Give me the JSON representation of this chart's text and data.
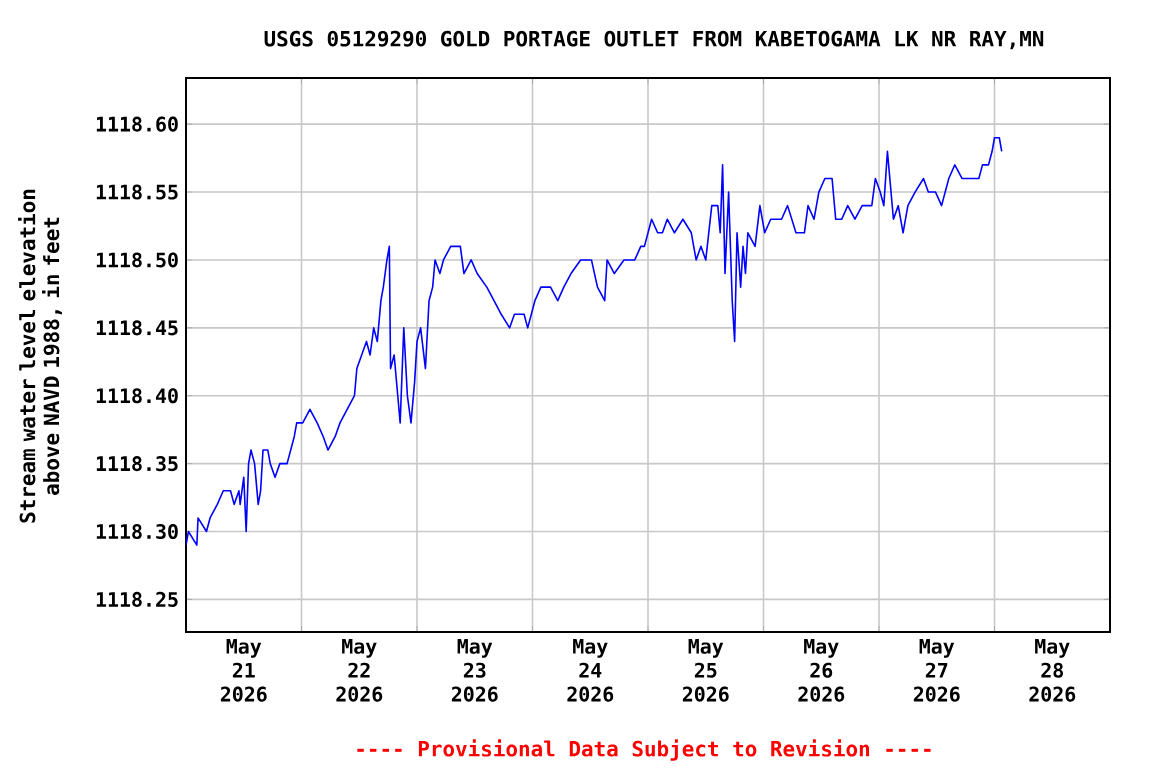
{
  "chart_data": {
    "type": "line",
    "title": "USGS 05129290 GOLD PORTAGE OUTLET FROM KABETOGAMA LK NR RAY,MN",
    "ylabel": "Stream water level elevation above NAVD 1988, in feet",
    "annotations": [
      "---- Provisional Data Subject to Revision ----"
    ],
    "xlim": [
      "2026-05-21T00:00",
      "2026-05-29T00:00"
    ],
    "xticks": [
      {
        "value": "2026-05-21T00:00",
        "label": null
      },
      {
        "value": "2026-05-21T12:00",
        "label": "May 21 2026"
      },
      {
        "value": "2026-05-22T00:00",
        "label": null
      },
      {
        "value": "2026-05-22T12:00",
        "label": "May 22 2026"
      },
      {
        "value": "2026-05-23T00:00",
        "label": null
      },
      {
        "value": "2026-05-23T12:00",
        "label": "May 23 2026"
      },
      {
        "value": "2026-05-24T00:00",
        "label": null
      },
      {
        "value": "2026-05-24T12:00",
        "label": "May 24 2026"
      },
      {
        "value": "2026-05-25T00:00",
        "label": null
      },
      {
        "value": "2026-05-25T12:00",
        "label": "May 25 2026"
      },
      {
        "value": "2026-05-26T00:00",
        "label": null
      },
      {
        "value": "2026-05-26T12:00",
        "label": "May 26 2026"
      },
      {
        "value": "2026-05-27T00:00",
        "label": null
      },
      {
        "value": "2026-05-27T12:00",
        "label": "May 27 2026"
      },
      {
        "value": "2026-05-28T00:00",
        "label": null
      },
      {
        "value": "2026-05-28T12:00",
        "label": "May 28 2026"
      },
      {
        "value": "2026-05-29T00:00",
        "label": null
      }
    ],
    "ylim": [
      1118.226,
      1118.634
    ],
    "yticks": [
      1118.25,
      {
        "value": 1118.3,
        "label": "1118.30"
      },
      1118.35,
      {
        "value": 1118.4,
        "label": "1118.40"
      },
      1118.45,
      {
        "value": 1118.5,
        "label": "1118.50"
      },
      1118.55,
      {
        "value": 1118.6,
        "label": "1118.60"
      }
    ],
    "grid": true,
    "marker": "none",
    "line_style": "solid",
    "x": [
      "2026-05-21T00:00",
      "2026-05-21T00:30",
      "2026-05-21T02:15",
      "2026-05-21T02:30",
      "2026-05-21T04:15",
      "2026-05-21T05:00",
      "2026-05-21T06:30",
      "2026-05-21T07:45",
      "2026-05-21T09:15",
      "2026-05-21T10:00",
      "2026-05-21T11:00",
      "2026-05-21T11:15",
      "2026-05-21T12:00",
      "2026-05-21T12:30",
      "2026-05-21T13:00",
      "2026-05-21T13:30",
      "2026-05-21T14:15",
      "2026-05-21T15:00",
      "2026-05-21T15:30",
      "2026-05-21T16:00",
      "2026-05-21T17:00",
      "2026-05-21T17:30",
      "2026-05-21T18:30",
      "2026-05-21T19:30",
      "2026-05-21T21:00",
      "2026-05-21T21:45",
      "2026-05-21T22:30",
      "2026-05-21T23:00",
      "2026-05-22T00:15",
      "2026-05-22T01:45",
      "2026-05-22T03:15",
      "2026-05-22T04:30",
      "2026-05-22T05:30",
      "2026-05-22T07:00",
      "2026-05-22T08:00",
      "2026-05-22T09:30",
      "2026-05-22T11:00",
      "2026-05-22T11:30",
      "2026-05-22T12:30",
      "2026-05-22T13:30",
      "2026-05-22T14:15",
      "2026-05-22T15:00",
      "2026-05-22T15:45",
      "2026-05-22T16:30",
      "2026-05-22T17:00",
      "2026-05-22T17:45",
      "2026-05-22T18:15",
      "2026-05-22T18:30",
      "2026-05-22T19:15",
      "2026-05-22T20:00",
      "2026-05-22T20:30",
      "2026-05-22T21:15",
      "2026-05-22T22:00",
      "2026-05-22T22:45",
      "2026-05-22T23:30",
      "2026-05-23T00:00",
      "2026-05-23T00:45",
      "2026-05-23T01:45",
      "2026-05-23T02:30",
      "2026-05-23T03:15",
      "2026-05-23T03:45",
      "2026-05-23T04:45",
      "2026-05-23T05:30",
      "2026-05-23T07:00",
      "2026-05-23T09:00",
      "2026-05-23T09:45",
      "2026-05-23T11:15",
      "2026-05-23T12:30",
      "2026-05-23T14:30",
      "2026-05-23T16:00",
      "2026-05-23T17:30",
      "2026-05-23T19:15",
      "2026-05-23T20:15",
      "2026-05-23T22:15",
      "2026-05-23T23:00",
      "2026-05-24T00:30",
      "2026-05-24T01:45",
      "2026-05-24T03:45",
      "2026-05-24T05:15",
      "2026-05-24T06:30",
      "2026-05-24T08:00",
      "2026-05-24T10:00",
      "2026-05-24T12:15",
      "2026-05-24T13:30",
      "2026-05-24T15:00",
      "2026-05-24T15:30",
      "2026-05-24T17:00",
      "2026-05-24T19:00",
      "2026-05-24T21:15",
      "2026-05-24T22:30",
      "2026-05-24T23:15",
      "2026-05-25T00:00",
      "2026-05-25T00:45",
      "2026-05-25T02:00",
      "2026-05-25T03:00",
      "2026-05-25T04:00",
      "2026-05-25T05:30",
      "2026-05-25T07:15",
      "2026-05-25T09:00",
      "2026-05-25T10:00",
      "2026-05-25T11:00",
      "2026-05-25T12:00",
      "2026-05-25T13:15",
      "2026-05-25T14:30",
      "2026-05-25T15:00",
      "2026-05-25T15:30",
      "2026-05-25T16:00",
      "2026-05-25T16:45",
      "2026-05-25T17:30",
      "2026-05-25T18:00",
      "2026-05-25T18:30",
      "2026-05-25T19:15",
      "2026-05-25T19:45",
      "2026-05-25T20:15",
      "2026-05-25T20:45",
      "2026-05-25T22:15",
      "2026-05-25T23:15",
      "2026-05-26T00:15",
      "2026-05-26T01:30",
      "2026-05-26T03:45",
      "2026-05-26T05:00",
      "2026-05-26T06:45",
      "2026-05-26T08:30",
      "2026-05-26T09:15",
      "2026-05-26T10:30",
      "2026-05-26T11:30",
      "2026-05-26T12:45",
      "2026-05-26T14:15",
      "2026-05-26T15:00",
      "2026-05-26T16:15",
      "2026-05-26T17:30",
      "2026-05-26T19:00",
      "2026-05-26T20:30",
      "2026-05-26T22:30",
      "2026-05-26T23:15",
      "2026-05-27T00:15",
      "2026-05-27T01:00",
      "2026-05-27T01:45",
      "2026-05-27T02:15",
      "2026-05-27T03:00",
      "2026-05-27T04:00",
      "2026-05-27T05:00",
      "2026-05-27T06:00",
      "2026-05-27T07:30",
      "2026-05-27T09:15",
      "2026-05-27T10:15",
      "2026-05-27T11:45",
      "2026-05-27T13:00",
      "2026-05-27T14:30",
      "2026-05-27T15:45",
      "2026-05-27T17:15",
      "2026-05-27T19:15",
      "2026-05-27T20:45",
      "2026-05-27T21:30",
      "2026-05-27T22:45",
      "2026-05-27T23:30",
      "2026-05-28T00:00",
      "2026-05-28T01:00",
      "2026-05-28T01:30"
    ],
    "series": [
      {
        "color": "#0000ff",
        "values": [
          1118.29,
          1118.3,
          1118.29,
          1118.31,
          1118.3,
          1118.31,
          1118.32,
          1118.33,
          1118.33,
          1118.32,
          1118.33,
          1118.32,
          1118.34,
          1118.3,
          1118.35,
          1118.36,
          1118.35,
          1118.32,
          1118.33,
          1118.36,
          1118.36,
          1118.35,
          1118.34,
          1118.35,
          1118.35,
          1118.36,
          1118.37,
          1118.38,
          1118.38,
          1118.39,
          1118.38,
          1118.37,
          1118.36,
          1118.37,
          1118.38,
          1118.39,
          1118.4,
          1118.42,
          1118.43,
          1118.44,
          1118.43,
          1118.45,
          1118.44,
          1118.47,
          1118.48,
          1118.5,
          1118.51,
          1118.42,
          1118.43,
          1118.4,
          1118.38,
          1118.45,
          1118.4,
          1118.38,
          1118.41,
          1118.44,
          1118.45,
          1118.42,
          1118.47,
          1118.48,
          1118.5,
          1118.49,
          1118.5,
          1118.51,
          1118.51,
          1118.49,
          1118.5,
          1118.49,
          1118.48,
          1118.47,
          1118.46,
          1118.45,
          1118.46,
          1118.46,
          1118.45,
          1118.47,
          1118.48,
          1118.48,
          1118.47,
          1118.48,
          1118.49,
          1118.5,
          1118.5,
          1118.48,
          1118.47,
          1118.5,
          1118.49,
          1118.5,
          1118.5,
          1118.51,
          1118.51,
          1118.52,
          1118.53,
          1118.52,
          1118.52,
          1118.53,
          1118.52,
          1118.53,
          1118.52,
          1118.5,
          1118.51,
          1118.5,
          1118.54,
          1118.54,
          1118.52,
          1118.57,
          1118.49,
          1118.55,
          1118.47,
          1118.44,
          1118.52,
          1118.48,
          1118.51,
          1118.49,
          1118.52,
          1118.51,
          1118.54,
          1118.52,
          1118.53,
          1118.53,
          1118.54,
          1118.52,
          1118.52,
          1118.54,
          1118.53,
          1118.55,
          1118.56,
          1118.56,
          1118.53,
          1118.53,
          1118.54,
          1118.53,
          1118.54,
          1118.54,
          1118.56,
          1118.55,
          1118.54,
          1118.58,
          1118.56,
          1118.53,
          1118.54,
          1118.52,
          1118.54,
          1118.55,
          1118.56,
          1118.55,
          1118.55,
          1118.54,
          1118.56,
          1118.57,
          1118.56,
          1118.56,
          1118.56,
          1118.57,
          1118.57,
          1118.58,
          1118.59,
          1118.59,
          1118.58
        ]
      }
    ]
  }
}
